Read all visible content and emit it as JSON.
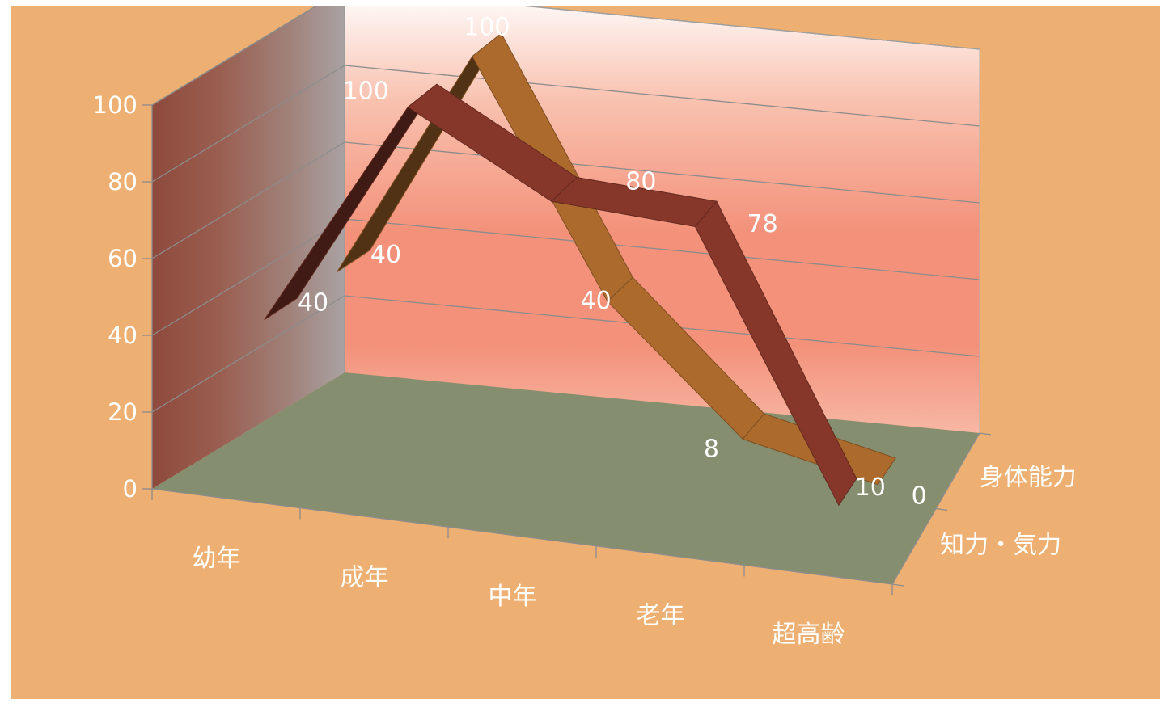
{
  "chart_data": {
    "type": "line",
    "style": "3d-ribbon",
    "categories": [
      "幼年",
      "成年",
      "中年",
      "老年",
      "超高齢"
    ],
    "series": [
      {
        "name": "身体能力",
        "values": [
          40,
          100,
          40,
          8,
          0
        ],
        "labels": [
          "40",
          "100",
          "40",
          "8",
          "0"
        ],
        "color": "#B5702F"
      },
      {
        "name": "知力・気力",
        "values": [
          40,
          100,
          80,
          78,
          10
        ],
        "labels": [
          "40",
          "100",
          "80",
          "78",
          "10"
        ],
        "color": "#8E3A2C"
      }
    ],
    "y_ticks": [
      "0",
      "20",
      "40",
      "60",
      "80",
      "100"
    ],
    "ylim": [
      0,
      100
    ],
    "grid": true,
    "background": "#EDB072",
    "floor_color": "#868E70",
    "back_wall_color": "#F39079",
    "label_color": "#FFFFFF"
  }
}
